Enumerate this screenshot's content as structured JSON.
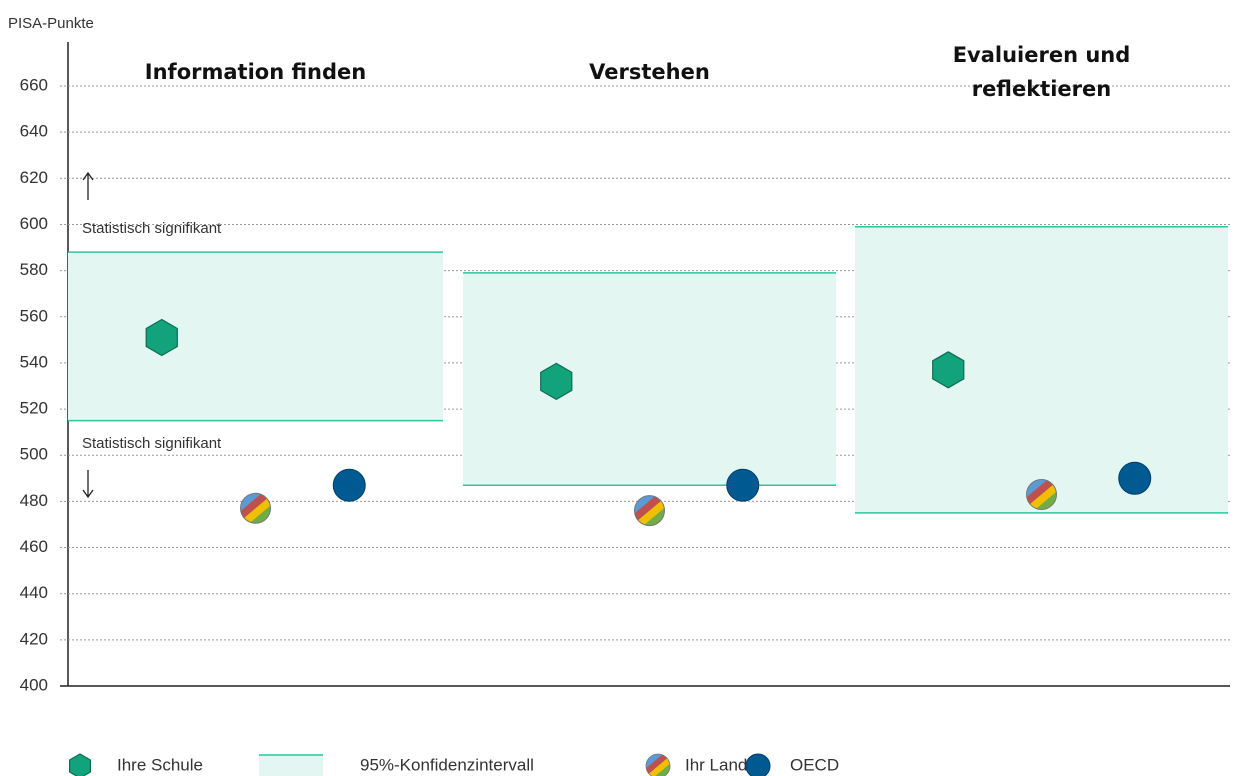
{
  "chart_data": {
    "type": "dot",
    "y_label": "PISA-Punkte",
    "ylim": [
      400,
      660
    ],
    "yticks": [
      400,
      420,
      440,
      460,
      480,
      500,
      520,
      540,
      560,
      580,
      600,
      620,
      640,
      660
    ],
    "grid": true,
    "categories": [
      "Information finden",
      "Verstehen",
      "Evaluieren und reflektieren"
    ],
    "interval": {
      "name": "95%-Konfidenzintervall",
      "color": "#2cc6a0",
      "fill": "#e3f6f1",
      "lower": [
        515,
        487,
        475
      ],
      "upper": [
        588,
        579,
        599
      ]
    },
    "series": [
      {
        "name": "Ihre Schule",
        "marker": "hexagon",
        "color": "#13a37c",
        "values": [
          551,
          532,
          537
        ]
      },
      {
        "name": "Ihr Land",
        "marker": "striped",
        "colors": [
          "#5b9bd5",
          "#c0504d",
          "#f0c000",
          "#70ad47"
        ],
        "values": [
          477,
          476,
          483
        ]
      },
      {
        "name": "OECD",
        "marker": "circle",
        "color": "#005a92",
        "values": [
          487,
          487,
          490
        ]
      }
    ],
    "annotations": [
      "Statistisch signifikant",
      "Statistisch signifikant"
    ]
  }
}
